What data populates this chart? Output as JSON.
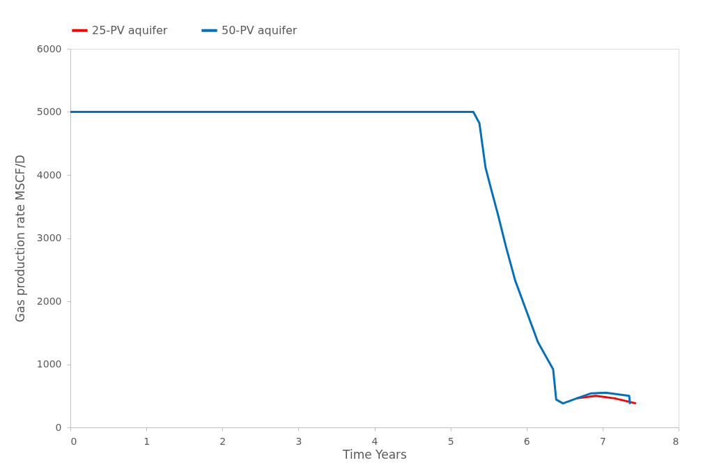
{
  "chart_data": {
    "type": "line",
    "xlabel": "Time    Years",
    "ylabel": "Gas production rate    MSCF/D",
    "xlim": [
      0,
      8
    ],
    "xticks": [
      0,
      1,
      2,
      3,
      4,
      5,
      6,
      7,
      8
    ],
    "ylim": [
      0,
      6000
    ],
    "yticks": [
      0,
      1000,
      2000,
      3000,
      4000,
      5000,
      6000
    ],
    "grid": false,
    "legend": "top",
    "marker": "none",
    "line_style": "solid",
    "series": [
      {
        "name": "25-PV aquifer",
        "color": "#ff0000",
        "x": [
          6.66,
          6.91,
          7.16,
          7.44
        ],
        "values": [
          460,
          500,
          460,
          380
        ]
      },
      {
        "name": "50-PV aquifer",
        "color": "#0070c0",
        "x": [
          0,
          5.3,
          5.38,
          5.46,
          5.54,
          5.62,
          5.73,
          5.85,
          6.0,
          6.15,
          6.35,
          6.39,
          6.48,
          6.66,
          6.85,
          7.04,
          7.35,
          7.36
        ],
        "values": [
          5000,
          5000,
          4820,
          4120,
          3750,
          3390,
          2860,
          2330,
          1840,
          1350,
          920,
          440,
          380,
          460,
          540,
          550,
          500,
          370
        ]
      }
    ]
  }
}
